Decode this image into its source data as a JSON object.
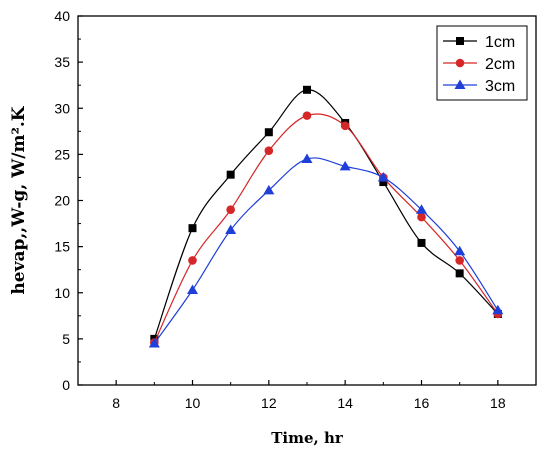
{
  "chart_data": {
    "type": "line",
    "xlabel": "Time, hr",
    "ylabel": "hevap,,W-g, W/m².K",
    "xlim": [
      7,
      19
    ],
    "ylim": [
      0,
      40
    ],
    "xticks": [
      8,
      10,
      12,
      14,
      16,
      18
    ],
    "yticks": [
      0,
      5,
      10,
      15,
      20,
      25,
      30,
      35,
      40
    ],
    "x": [
      9,
      10,
      11,
      12,
      13,
      14,
      15,
      16,
      17,
      18
    ],
    "series": [
      {
        "name": "1cm",
        "marker": "square",
        "color": "#000000",
        "values": [
          5.0,
          17.0,
          22.8,
          27.4,
          32.0,
          28.4,
          22.0,
          15.4,
          12.1,
          7.7
        ]
      },
      {
        "name": "2cm",
        "marker": "circle",
        "color": "#d62728",
        "values": [
          4.6,
          13.5,
          19.0,
          25.4,
          29.2,
          28.1,
          22.5,
          18.2,
          13.5,
          7.7
        ]
      },
      {
        "name": "3cm",
        "marker": "triangle",
        "color": "#1f3fd9",
        "values": [
          4.5,
          10.3,
          16.8,
          21.1,
          24.5,
          23.7,
          22.5,
          19.0,
          14.5,
          8.1
        ]
      }
    ],
    "grid": false,
    "legend_position": "top-right"
  }
}
